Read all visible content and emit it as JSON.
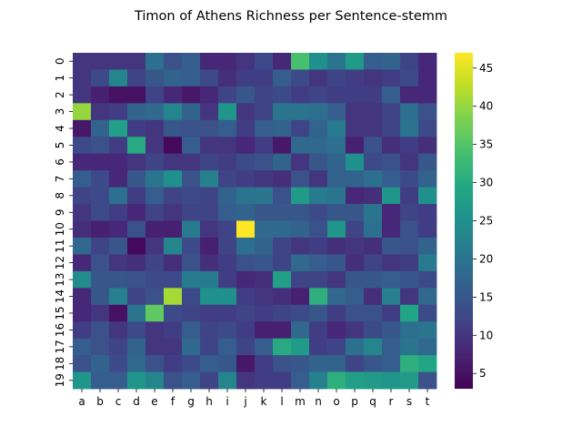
{
  "chart_data": {
    "type": "heatmap",
    "title": "Timon of Athens Richness per Sentence-stemm",
    "xlabel": "",
    "ylabel": "",
    "x_categories": [
      "a",
      "b",
      "c",
      "d",
      "e",
      "f",
      "g",
      "h",
      "i",
      "j",
      "k",
      "l",
      "m",
      "n",
      "o",
      "p",
      "q",
      "r",
      "s",
      "t"
    ],
    "y_categories": [
      "0",
      "1",
      "2",
      "3",
      "4",
      "5",
      "6",
      "7",
      "8",
      "9",
      "10",
      "11",
      "12",
      "13",
      "14",
      "15",
      "16",
      "17",
      "18",
      "19"
    ],
    "colorbar": {
      "min": 3,
      "max": 47,
      "ticks": [
        5,
        10,
        15,
        20,
        25,
        30,
        35,
        40,
        45
      ],
      "colormap": "viridis"
    },
    "values": [
      [
        10,
        10,
        10,
        10,
        19,
        14,
        16,
        8,
        8,
        10,
        13,
        8,
        34,
        25,
        20,
        27,
        16,
        17,
        12,
        8
      ],
      [
        10,
        13,
        23,
        12,
        15,
        17,
        16,
        13,
        9,
        11,
        11,
        16,
        13,
        10,
        12,
        11,
        10,
        11,
        13,
        8
      ],
      [
        10,
        7,
        5,
        5,
        12,
        8,
        6,
        8,
        12,
        15,
        12,
        13,
        11,
        12,
        11,
        11,
        11,
        16,
        8,
        8
      ],
      [
        40,
        10,
        11,
        17,
        18,
        23,
        17,
        10,
        26,
        10,
        12,
        20,
        20,
        19,
        16,
        10,
        10,
        12,
        19,
        14
      ],
      [
        6,
        17,
        28,
        11,
        10,
        15,
        14,
        14,
        16,
        11,
        16,
        17,
        12,
        17,
        21,
        10,
        10,
        12,
        20,
        13
      ],
      [
        13,
        14,
        11,
        30,
        10,
        4,
        16,
        10,
        10,
        8,
        11,
        6,
        18,
        18,
        19,
        7,
        14,
        9,
        11,
        9
      ],
      [
        8,
        8,
        8,
        10,
        12,
        10,
        10,
        12,
        11,
        13,
        14,
        17,
        10,
        15,
        17,
        25,
        13,
        14,
        10,
        15
      ],
      [
        16,
        13,
        8,
        15,
        20,
        25,
        14,
        22,
        12,
        11,
        10,
        9,
        14,
        10,
        17,
        17,
        19,
        16,
        13,
        17
      ],
      [
        12,
        13,
        19,
        11,
        16,
        12,
        13,
        12,
        17,
        20,
        20,
        14,
        27,
        21,
        20,
        8,
        9,
        26,
        11,
        25
      ],
      [
        10,
        13,
        11,
        8,
        12,
        10,
        12,
        12,
        16,
        17,
        15,
        15,
        15,
        13,
        15,
        15,
        20,
        8,
        12,
        11
      ],
      [
        9,
        7,
        8,
        14,
        7,
        7,
        21,
        10,
        12,
        47,
        18,
        18,
        17,
        14,
        26,
        12,
        19,
        8,
        14,
        11
      ],
      [
        18,
        12,
        15,
        4,
        10,
        23,
        13,
        7,
        12,
        19,
        17,
        12,
        10,
        11,
        9,
        10,
        9,
        15,
        14,
        17
      ],
      [
        8,
        14,
        10,
        9,
        12,
        9,
        14,
        9,
        11,
        14,
        15,
        12,
        18,
        16,
        15,
        9,
        12,
        10,
        11,
        21
      ],
      [
        24,
        15,
        15,
        14,
        13,
        13,
        21,
        21,
        11,
        8,
        9,
        28,
        12,
        12,
        10,
        15,
        15,
        16,
        15,
        13
      ],
      [
        8,
        15,
        22,
        12,
        14,
        41,
        13,
        25,
        25,
        11,
        10,
        9,
        7,
        31,
        18,
        16,
        9,
        22,
        10,
        18
      ],
      [
        8,
        10,
        5,
        20,
        36,
        13,
        12,
        11,
        11,
        12,
        11,
        12,
        13,
        15,
        11,
        14,
        14,
        11,
        29,
        13
      ],
      [
        11,
        14,
        10,
        13,
        10,
        11,
        16,
        12,
        13,
        11,
        7,
        7,
        18,
        11,
        8,
        10,
        13,
        15,
        19,
        20
      ],
      [
        16,
        14,
        12,
        17,
        10,
        10,
        18,
        12,
        16,
        12,
        16,
        30,
        27,
        11,
        12,
        19,
        23,
        16,
        20,
        18
      ],
      [
        14,
        17,
        13,
        18,
        14,
        11,
        13,
        16,
        15,
        6,
        11,
        14,
        15,
        17,
        17,
        12,
        15,
        16,
        31,
        29
      ],
      [
        26,
        16,
        16,
        26,
        23,
        14,
        16,
        12,
        23,
        10,
        11,
        11,
        16,
        22,
        31,
        28,
        27,
        26,
        27,
        14
      ]
    ]
  }
}
